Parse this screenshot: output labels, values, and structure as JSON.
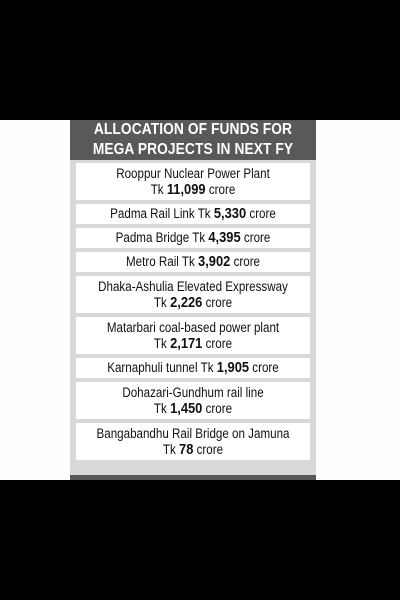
{
  "title": {
    "line1": "ALLOCATION OF FUNDS FOR",
    "line2": "MEGA PROJECTS IN NEXT FY"
  },
  "projects": [
    {
      "name": "Rooppur Nuclear Power Plant",
      "prefix": "Tk",
      "amount": "11,099",
      "unit": "crore"
    },
    {
      "name": "Padma Rail Link",
      "prefix": "Tk",
      "amount": "5,330",
      "unit": "crore"
    },
    {
      "name": "Padma Bridge",
      "prefix": "Tk",
      "amount": "4,395",
      "unit": "crore"
    },
    {
      "name": "Metro Rail",
      "prefix": "Tk",
      "amount": "3,902",
      "unit": "crore"
    },
    {
      "name": "Dhaka-Ashulia Elevated Expressway",
      "prefix": "Tk",
      "amount": "2,226",
      "unit": "crore"
    },
    {
      "name": "Matarbari coal-based power plant",
      "prefix": "Tk",
      "amount": "2,171",
      "unit": "crore"
    },
    {
      "name": "Karnaphuli tunnel",
      "prefix": "Tk",
      "amount": "1,905",
      "unit": "crore"
    },
    {
      "name": "Dohazari-Gundhum rail line",
      "prefix": "Tk",
      "amount": "1,450",
      "unit": "crore"
    },
    {
      "name": "Bangabandhu Rail Bridge on Jamuna",
      "prefix": "Tk",
      "amount": "78",
      "unit": "crore"
    }
  ]
}
